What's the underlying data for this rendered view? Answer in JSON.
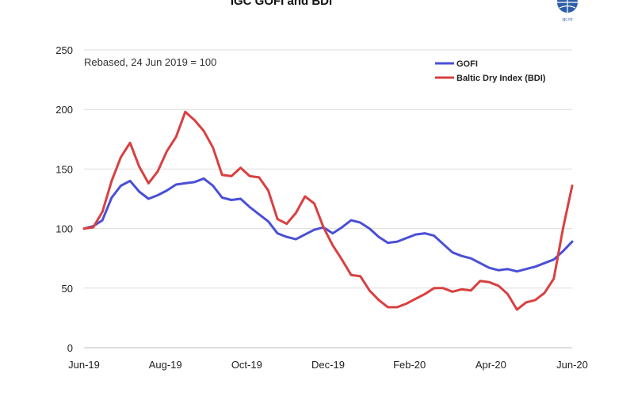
{
  "chart_data": {
    "type": "line",
    "title": "IGC GOFI and BDI",
    "note": "Rebased, 24 Jun 2019 = 100",
    "ylim": [
      0,
      250
    ],
    "yticks": [
      "0",
      "50",
      "100",
      "150",
      "200",
      "250"
    ],
    "xtick_labels": [
      "Jun-19",
      "Aug-19",
      "Oct-19",
      "Dec-19",
      "Feb-20",
      "Apr-20",
      "Jun-20"
    ],
    "grid": true,
    "legend": "top-right",
    "x": [
      "2019-06-24",
      "2019-07-01",
      "2019-07-08",
      "2019-07-15",
      "2019-07-22",
      "2019-07-29",
      "2019-08-05",
      "2019-08-12",
      "2019-08-19",
      "2019-08-26",
      "2019-09-02",
      "2019-09-09",
      "2019-09-16",
      "2019-09-23",
      "2019-09-30",
      "2019-10-07",
      "2019-10-14",
      "2019-10-21",
      "2019-10-28",
      "2019-11-04",
      "2019-11-11",
      "2019-11-18",
      "2019-11-25",
      "2019-12-02",
      "2019-12-09",
      "2019-12-16",
      "2019-12-23",
      "2019-12-30",
      "2020-01-06",
      "2020-01-13",
      "2020-01-20",
      "2020-01-27",
      "2020-02-03",
      "2020-02-10",
      "2020-02-17",
      "2020-02-24",
      "2020-03-02",
      "2020-03-09",
      "2020-03-16",
      "2020-03-23",
      "2020-03-30",
      "2020-04-06",
      "2020-04-13",
      "2020-04-20",
      "2020-04-27",
      "2020-05-04",
      "2020-05-11",
      "2020-05-18",
      "2020-05-25",
      "2020-06-01",
      "2020-06-08",
      "2020-06-15",
      "2020-06-22",
      "2020-06-29"
    ],
    "series": [
      {
        "name": "GOFI",
        "color": "#4a4fd6",
        "values": [
          100,
          102,
          107,
          126,
          136,
          140,
          131,
          125,
          128,
          132,
          137,
          138,
          139,
          142,
          136,
          126,
          124,
          125,
          118,
          112,
          106,
          96,
          93,
          91,
          95,
          99,
          101,
          96,
          101,
          107,
          105,
          100,
          93,
          88,
          89,
          92,
          95,
          96,
          94,
          87,
          80,
          77,
          75,
          71,
          67,
          65,
          66,
          64,
          66,
          68,
          71,
          74,
          81,
          89
        ]
      },
      {
        "name": "Baltic Dry Index (BDI)",
        "color": "#d94040",
        "values": [
          100,
          101,
          114,
          140,
          160,
          172,
          152,
          138,
          148,
          165,
          177,
          198,
          191,
          182,
          168,
          145,
          144,
          151,
          144,
          143,
          132,
          108,
          104,
          113,
          127,
          121,
          101,
          86,
          74,
          61,
          60,
          48,
          40,
          34,
          34,
          37,
          41,
          45,
          50,
          50,
          47,
          49,
          48,
          56,
          55,
          52,
          45,
          32,
          38,
          40,
          46,
          58,
          100,
          136
        ]
      }
    ]
  },
  "logo": {
    "text": "igc.int"
  }
}
